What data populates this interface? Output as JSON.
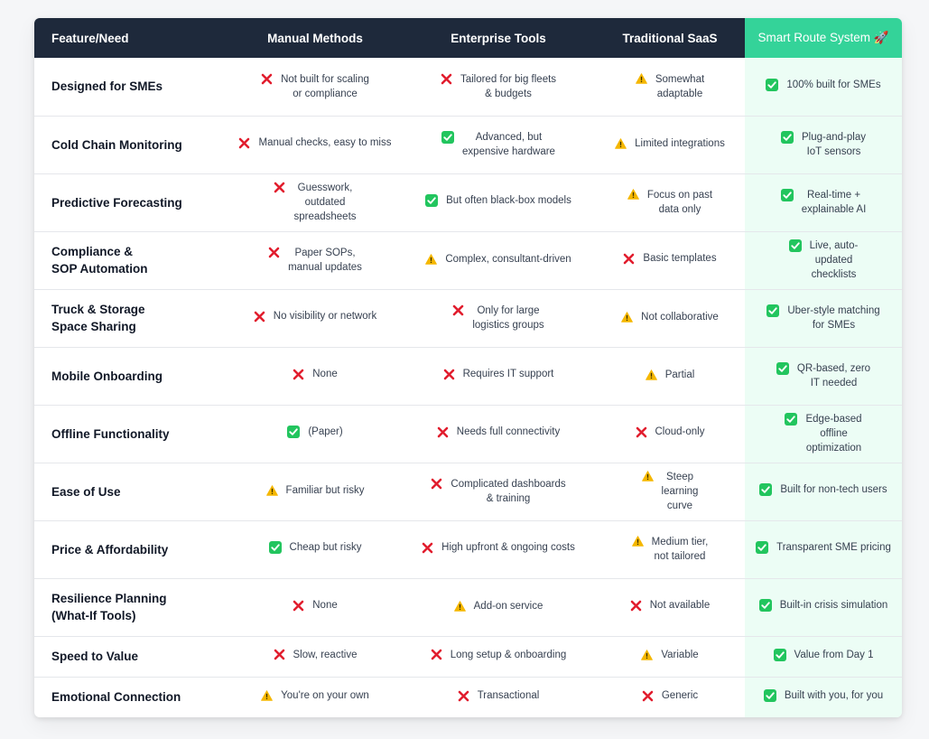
{
  "header": {
    "feature": "Feature/Need",
    "manual": "Manual Methods",
    "enterprise": "Enterprise Tools",
    "saas": "Traditional SaaS",
    "smart": "Smart Route System 🚀"
  },
  "rows": [
    {
      "feature": "Designed for SMEs",
      "manual": {
        "icon": "cross-icon",
        "text": "Not built for scaling\nor compliance"
      },
      "enterprise": {
        "icon": "cross-icon",
        "text": "Tailored for big fleets\n& budgets"
      },
      "saas": {
        "icon": "warning-icon",
        "text": "Somewhat\nadaptable"
      },
      "smart": {
        "icon": "check-icon",
        "text": "100% built for SMEs"
      }
    },
    {
      "feature": "Cold Chain Monitoring",
      "manual": {
        "icon": "cross-icon",
        "text": "Manual checks, easy to miss"
      },
      "enterprise": {
        "icon": "check-icon",
        "text": "Advanced, but\nexpensive hardware"
      },
      "saas": {
        "icon": "warning-icon",
        "text": "Limited integrations"
      },
      "smart": {
        "icon": "check-icon",
        "text": "Plug-and-play\nIoT sensors"
      }
    },
    {
      "feature": "Predictive Forecasting",
      "manual": {
        "icon": "cross-icon",
        "text": "Guesswork,\noutdated\nspreadsheets"
      },
      "enterprise": {
        "icon": "check-icon",
        "text": "But often black-box models"
      },
      "saas": {
        "icon": "warning-icon",
        "text": "Focus on past\ndata only"
      },
      "smart": {
        "icon": "check-icon",
        "text": "Real-time +\nexplainable AI"
      }
    },
    {
      "feature": "Compliance &\nSOP Automation",
      "manual": {
        "icon": "cross-icon",
        "text": "Paper SOPs,\nmanual updates"
      },
      "enterprise": {
        "icon": "warning-icon",
        "text": "Complex, consultant-driven"
      },
      "saas": {
        "icon": "cross-icon",
        "text": "Basic templates"
      },
      "smart": {
        "icon": "check-icon",
        "text": "Live, auto-\nupdated\nchecklists"
      }
    },
    {
      "feature": "Truck & Storage\nSpace Sharing",
      "manual": {
        "icon": "cross-icon",
        "text": "No visibility or network"
      },
      "enterprise": {
        "icon": "cross-icon",
        "text": "Only for large\nlogistics groups"
      },
      "saas": {
        "icon": "warning-icon",
        "text": "Not collaborative"
      },
      "smart": {
        "icon": "check-icon",
        "text": "Uber-style matching\nfor SMEs"
      }
    },
    {
      "feature": "Mobile Onboarding",
      "manual": {
        "icon": "cross-icon",
        "text": "None"
      },
      "enterprise": {
        "icon": "cross-icon",
        "text": "Requires IT support"
      },
      "saas": {
        "icon": "warning-icon",
        "text": "Partial"
      },
      "smart": {
        "icon": "check-icon",
        "text": "QR-based, zero\nIT needed"
      }
    },
    {
      "feature": "Offline Functionality",
      "manual": {
        "icon": "check-icon",
        "text": "(Paper)"
      },
      "enterprise": {
        "icon": "cross-icon",
        "text": "Needs full connectivity"
      },
      "saas": {
        "icon": "cross-icon",
        "text": "Cloud-only"
      },
      "smart": {
        "icon": "check-icon",
        "text": "Edge-based\noffline\noptimization"
      }
    },
    {
      "feature": "Ease of Use",
      "manual": {
        "icon": "warning-icon",
        "text": "Familiar but risky"
      },
      "enterprise": {
        "icon": "cross-icon",
        "text": "Complicated dashboards\n& training"
      },
      "saas": {
        "icon": "warning-icon",
        "text": "Steep\nlearning\ncurve"
      },
      "smart": {
        "icon": "check-icon",
        "text": "Built for non-tech users"
      }
    },
    {
      "feature": "Price & Affordability",
      "manual": {
        "icon": "check-icon",
        "text": "Cheap but risky"
      },
      "enterprise": {
        "icon": "cross-icon",
        "text": "High upfront & ongoing costs"
      },
      "saas": {
        "icon": "warning-icon",
        "text": "Medium tier,\nnot tailored"
      },
      "smart": {
        "icon": "check-icon",
        "text": "Transparent SME pricing"
      }
    },
    {
      "feature": "Resilience Planning\n(What-If Tools)",
      "manual": {
        "icon": "cross-icon",
        "text": "None"
      },
      "enterprise": {
        "icon": "warning-icon",
        "text": "Add-on service"
      },
      "saas": {
        "icon": "cross-icon",
        "text": "Not available"
      },
      "smart": {
        "icon": "check-icon",
        "text": "Built-in crisis simulation"
      }
    },
    {
      "feature": "Speed to Value",
      "manual": {
        "icon": "cross-icon",
        "text": "Slow, reactive"
      },
      "enterprise": {
        "icon": "cross-icon",
        "text": "Long setup & onboarding"
      },
      "saas": {
        "icon": "warning-icon",
        "text": "Variable"
      },
      "smart": {
        "icon": "check-icon",
        "text": "Value from Day 1"
      }
    },
    {
      "feature": "Emotional Connection",
      "manual": {
        "icon": "warning-icon",
        "text": "You're on your own"
      },
      "enterprise": {
        "icon": "cross-icon",
        "text": "Transactional"
      },
      "saas": {
        "icon": "cross-icon",
        "text": "Generic"
      },
      "smart": {
        "icon": "check-icon",
        "text": "Built with you, for you"
      }
    }
  ],
  "colors": {
    "header_bg": "#1e293b",
    "highlight": "#34d399",
    "highlight_bg": "#ecfdf5",
    "cross": "#e11d2e",
    "check": "#22c55e",
    "warning": "#f5b700"
  }
}
